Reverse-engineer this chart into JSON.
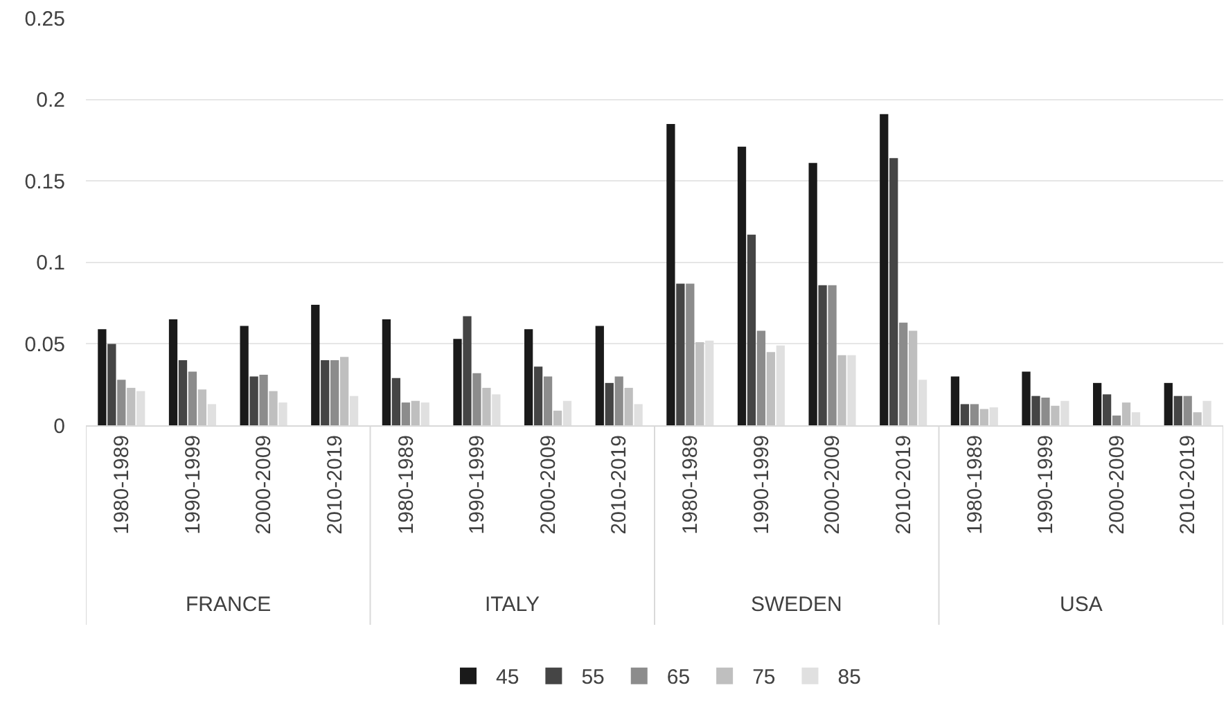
{
  "chart_data": {
    "type": "bar",
    "categories": [
      "1980-1989",
      "1990-1999",
      "2000-2009",
      "2010-2019",
      "1980-1989",
      "1990-1999",
      "2000-2009",
      "2010-2019",
      "1980-1989",
      "1990-1999",
      "2000-2009",
      "2010-2019",
      "1980-1989",
      "1990-1999",
      "2000-2009",
      "2010-2019"
    ],
    "series": [
      {
        "name": "45",
        "color": "#1a1a1a",
        "values": [
          0.059,
          0.065,
          0.061,
          0.074,
          0.065,
          0.053,
          0.059,
          0.061,
          0.185,
          0.171,
          0.161,
          0.191,
          0.03,
          0.033,
          0.026,
          0.026
        ]
      },
      {
        "name": "55",
        "color": "#454545",
        "values": [
          0.05,
          0.04,
          0.03,
          0.04,
          0.029,
          0.067,
          0.036,
          0.026,
          0.087,
          0.117,
          0.086,
          0.164,
          0.013,
          0.018,
          0.019,
          0.018
        ]
      },
      {
        "name": "65",
        "color": "#8c8c8c",
        "values": [
          0.028,
          0.033,
          0.031,
          0.04,
          0.014,
          0.032,
          0.03,
          0.03,
          0.087,
          0.058,
          0.086,
          0.063,
          0.013,
          0.017,
          0.006,
          0.018
        ]
      },
      {
        "name": "75",
        "color": "#bfbfbf",
        "values": [
          0.023,
          0.022,
          0.021,
          0.042,
          0.015,
          0.023,
          0.009,
          0.023,
          0.051,
          0.045,
          0.043,
          0.058,
          0.01,
          0.012,
          0.014,
          0.008
        ]
      },
      {
        "name": "85",
        "color": "#e0e0e0",
        "values": [
          0.021,
          0.013,
          0.014,
          0.018,
          0.014,
          0.019,
          0.015,
          0.013,
          0.052,
          0.049,
          0.043,
          0.028,
          0.011,
          0.015,
          0.008,
          0.015
        ]
      }
    ],
    "annotations": [
      "FRANCE",
      "ITALY",
      "SWEDEN",
      "USA"
    ],
    "ylim": [
      0,
      0.25
    ],
    "yticks": [
      0,
      0.05,
      0.1,
      0.15,
      0.2,
      0.25
    ],
    "grid": "y",
    "legend": "bottom"
  }
}
